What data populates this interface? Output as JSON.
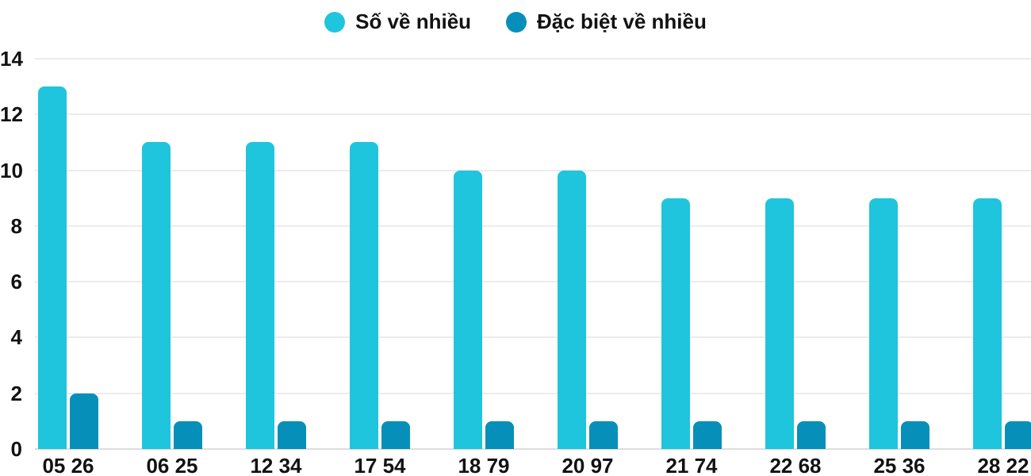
{
  "chart_data": {
    "type": "bar",
    "title": "",
    "xlabel": "",
    "ylabel": "",
    "categories": [
      "05 26",
      "06 25",
      "12 34",
      "17 54",
      "18 79",
      "20 97",
      "21 74",
      "22 68",
      "25 36",
      "28 22"
    ],
    "series": [
      {
        "name": "Số về nhiều",
        "color": "#1EC5DC",
        "values": [
          13,
          11,
          11,
          11,
          10,
          10,
          9,
          9,
          9,
          9
        ]
      },
      {
        "name": "Đặc biệt về nhiều",
        "color": "#0690B9",
        "values": [
          2,
          1,
          1,
          1,
          1,
          1,
          1,
          1,
          1,
          1
        ]
      }
    ],
    "ylim": [
      0,
      14
    ],
    "yticks": [
      0,
      2,
      4,
      6,
      8,
      10,
      12,
      14
    ],
    "grid": true,
    "legend_position": "top-center"
  },
  "colors": {
    "background": "#ffffff",
    "gridline": "#ececec",
    "axis_text": "#121212",
    "series_light": "#1EC5DC",
    "series_dark": "#0690B9"
  }
}
